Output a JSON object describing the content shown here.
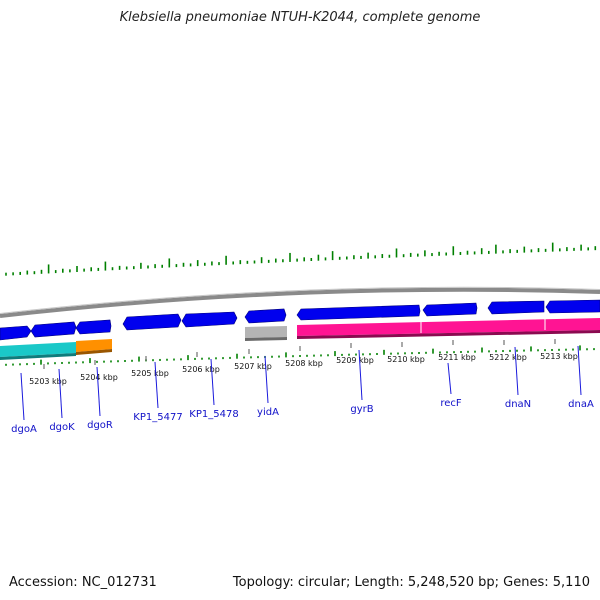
{
  "title": "Klebsiella pneumoniae NTUH-K2044, complete genome",
  "footer": {
    "accession": "Accession: NC_012731",
    "topology": "Topology: circular; Length: 5,248,520 bp; Genes: 5,110"
  },
  "colors": {
    "forward_gene": "#0000ee",
    "backbone": "#8a8a8a",
    "gc_ticks": "#008000",
    "label_line": "#1a1adc",
    "label_text": "#1010c8",
    "cds_cyan": "#1ac8c8",
    "cds_orange": "#ff9000",
    "cds_gray": "#b4b4b4",
    "cds_pink": "#ff1493"
  },
  "kbp_labels": [
    "5203 kbp",
    "5204 kbp",
    "5205 kbp",
    "5206 kbp",
    "5207 kbp",
    "5208 kbp",
    "5209 kbp",
    "5210 kbp",
    "5211 kbp",
    "5212 kbp",
    "5213 kbp"
  ],
  "gene_labels": [
    "dgoA",
    "dgoK",
    "dgoR",
    "KP1_5477",
    "KP1_5478",
    "yidA",
    "gyrB",
    "recF",
    "dnaN",
    "dnaA"
  ]
}
